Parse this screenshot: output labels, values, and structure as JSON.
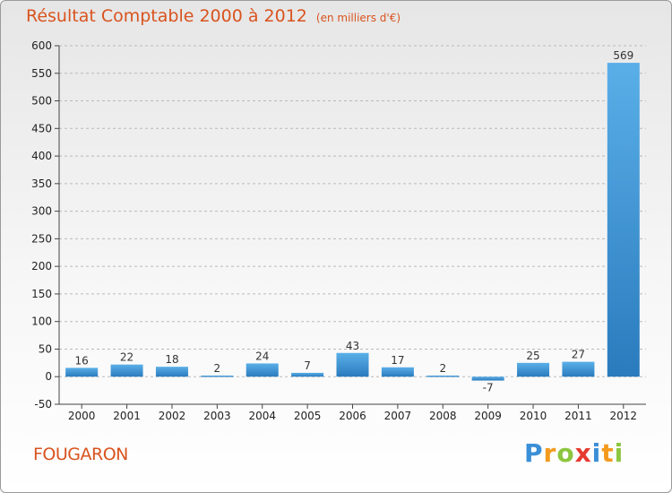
{
  "title": "Résultat Comptable 2000 à 2012",
  "unit": "(en milliers d'€)",
  "commune": "FOUGARON",
  "brand": {
    "letters": [
      {
        "ch": "P",
        "color": "#3a8fd6"
      },
      {
        "ch": "r",
        "color": "#f39a1f"
      },
      {
        "ch": "o",
        "color": "#8cc63f"
      },
      {
        "ch": "x",
        "color": "#e63a2f"
      },
      {
        "ch": "i",
        "color": "#3a8fd6"
      },
      {
        "ch": "t",
        "color": "#f39a1f"
      },
      {
        "ch": "i",
        "color": "#8cc63f"
      }
    ]
  },
  "colors": {
    "bar_top": "#5aafe8",
    "bar_bottom": "#2a7bbd",
    "accent": "#d9531e"
  },
  "chart_data": {
    "type": "bar",
    "categories": [
      "2000",
      "2001",
      "2002",
      "2003",
      "2004",
      "2005",
      "2006",
      "2007",
      "2008",
      "2009",
      "2010",
      "2011",
      "2012"
    ],
    "values": [
      16,
      22,
      18,
      2,
      24,
      7,
      43,
      17,
      2,
      -7,
      25,
      27,
      569
    ],
    "value_labels": [
      "16",
      "22",
      "18",
      "2",
      "24",
      "7",
      "43",
      "17",
      "2",
      "-7",
      "25",
      "27",
      "569"
    ],
    "yticks": [
      -50,
      0,
      50,
      100,
      150,
      200,
      250,
      300,
      350,
      400,
      450,
      500,
      550,
      600
    ],
    "ylim": [
      -50,
      600
    ],
    "grid": "horizontal dashed"
  }
}
